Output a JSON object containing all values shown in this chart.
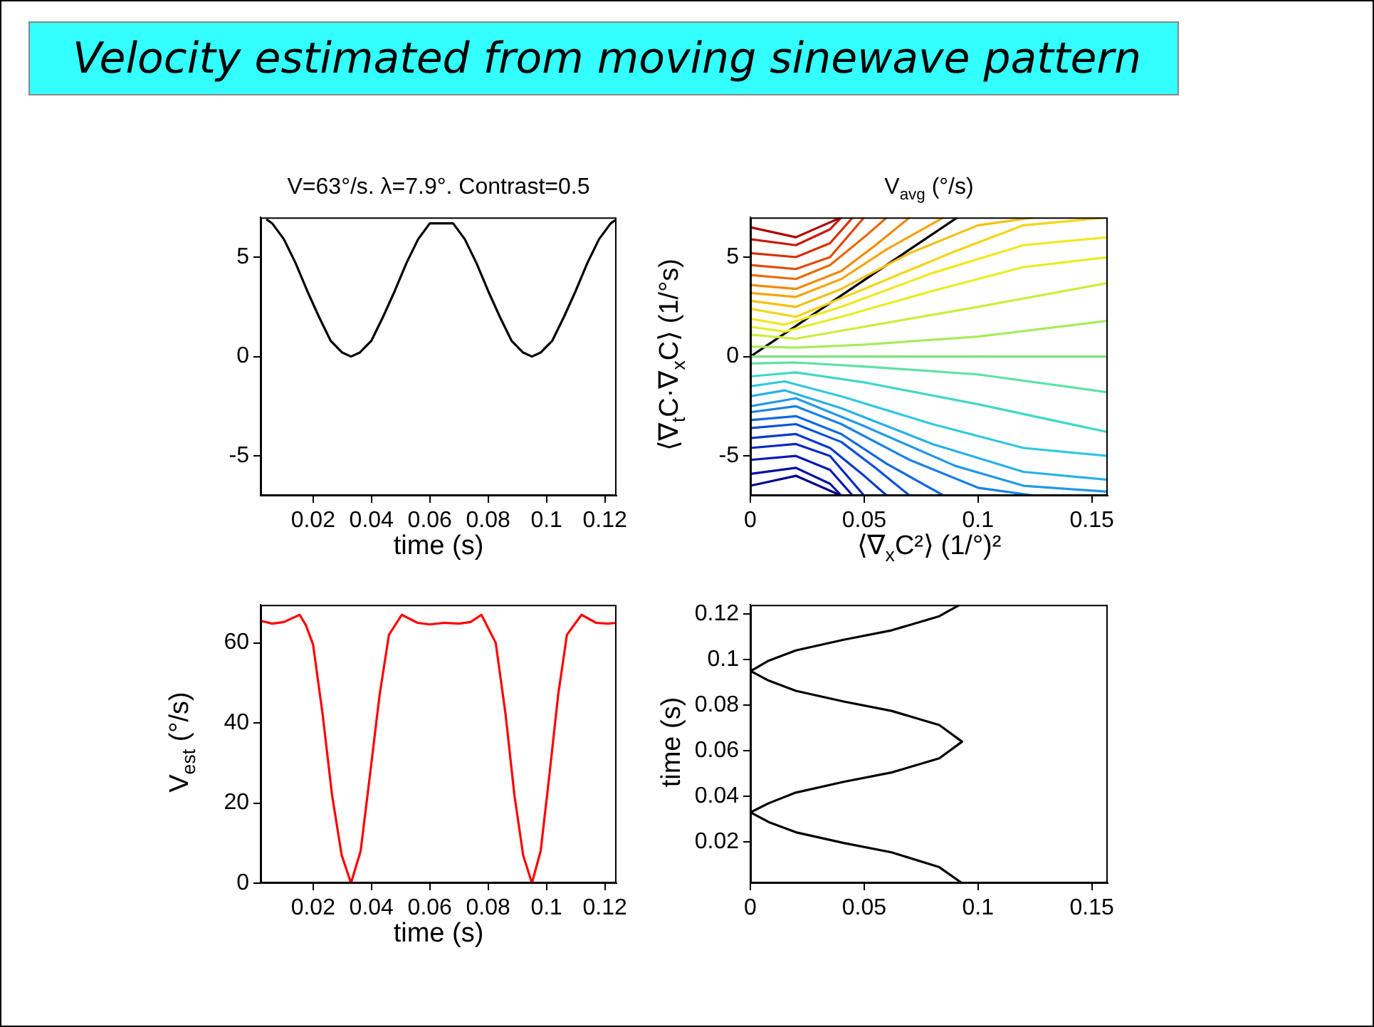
{
  "chart_data": [
    {
      "type": "other",
      "title": "Velocity estimated from moving sinewave pattern"
    },
    {
      "type": "line",
      "title": "V=63°/s. λ=7.9°. Contrast=0.5",
      "xlabel": "time (s)",
      "xlim": [
        0.002,
        0.124
      ],
      "ylim": [
        -7,
        7
      ],
      "xticks": [
        0.02,
        0.04,
        0.06,
        0.08,
        0.1,
        0.12
      ],
      "yticks": [
        -5,
        0,
        5
      ],
      "x": [
        0.004,
        0.006,
        0.01,
        0.014,
        0.018,
        0.022,
        0.026,
        0.03,
        0.033,
        0.036,
        0.04,
        0.044,
        0.048,
        0.052,
        0.056,
        0.06,
        0.068,
        0.072,
        0.076,
        0.08,
        0.084,
        0.088,
        0.092,
        0.095,
        0.098,
        0.102,
        0.106,
        0.11,
        0.114,
        0.118,
        0.122,
        0.124
      ],
      "series": [
        {
          "color": "#000000",
          "values": [
            6.9,
            6.7,
            5.9,
            4.7,
            3.3,
            2,
            0.8,
            0.2,
            0,
            0.2,
            0.8,
            2,
            3.3,
            4.7,
            5.9,
            6.7,
            6.7,
            5.9,
            4.7,
            3.3,
            2,
            0.8,
            0.2,
            0,
            0.2,
            0.8,
            2,
            3.3,
            4.7,
            5.9,
            6.7,
            6.9
          ]
        }
      ]
    },
    {
      "type": "line",
      "title": "V$_{avg}$ (°/s)",
      "xlabel": "⟨∇$_{x}$C²⟩ (1/°)²",
      "ylabel": "⟨∇$_{t}$C·∇$_{x}$C⟩ (1/°s)",
      "xlim": [
        0,
        0.157
      ],
      "ylim": [
        -7,
        7
      ],
      "xticks": [
        0,
        0.05,
        0.1,
        0.15
      ],
      "yticks": [
        -5,
        0,
        5
      ],
      "series": [
        {
          "color": "#b00000",
          "x": [
            0,
            0.02,
            0.03,
            0.04
          ],
          "values": [
            6.5,
            6.0,
            6.5,
            7
          ]
        },
        {
          "color": "#c81a04",
          "x": [
            0,
            0.02,
            0.035,
            0.04
          ],
          "values": [
            5.9,
            5.6,
            6.4,
            7
          ]
        },
        {
          "color": "#d53005",
          "x": [
            0,
            0.02,
            0.035,
            0.045
          ],
          "values": [
            5.2,
            5.0,
            5.7,
            7
          ]
        },
        {
          "color": "#e04a06",
          "x": [
            0,
            0.02,
            0.035,
            0.05
          ],
          "values": [
            4.6,
            4.4,
            5.0,
            7
          ]
        },
        {
          "color": "#ea6a08",
          "x": [
            0,
            0.02,
            0.035,
            0.05,
            0.06
          ],
          "values": [
            4.1,
            3.9,
            4.6,
            6.0,
            7
          ]
        },
        {
          "color": "#f08a0a",
          "x": [
            0,
            0.02,
            0.04,
            0.055,
            0.07
          ],
          "values": [
            3.6,
            3.4,
            4.3,
            5.6,
            7
          ]
        },
        {
          "color": "#f5a50c",
          "x": [
            0,
            0.02,
            0.04,
            0.06,
            0.085
          ],
          "values": [
            3.2,
            3.0,
            3.9,
            5.4,
            7
          ]
        },
        {
          "color": "#f5c010",
          "x": [
            0,
            0.02,
            0.04,
            0.07,
            0.1,
            0.125
          ],
          "values": [
            2.8,
            2.5,
            3.4,
            5.2,
            6.6,
            7
          ]
        },
        {
          "color": "#f5d515",
          "x": [
            0,
            0.02,
            0.05,
            0.09,
            0.12,
            0.157
          ],
          "values": [
            2.4,
            2.0,
            3.4,
            5.3,
            6.6,
            7.0
          ]
        },
        {
          "color": "#f2e81c",
          "x": [
            0,
            0.015,
            0.04,
            0.08,
            0.12,
            0.157
          ],
          "values": [
            1.9,
            1.6,
            2.5,
            4.2,
            5.6,
            6.0
          ]
        },
        {
          "color": "#e6ee20",
          "x": [
            0,
            0.015,
            0.04,
            0.08,
            0.12,
            0.157
          ],
          "values": [
            1.5,
            1.25,
            2.0,
            3.3,
            4.5,
            5.0
          ]
        },
        {
          "color": "#c8ef3c",
          "x": [
            0,
            0.02,
            0.05,
            0.1,
            0.157
          ],
          "values": [
            1.1,
            0.9,
            1.5,
            2.5,
            3.7
          ]
        },
        {
          "color": "#a8ec5a",
          "x": [
            0,
            0.02,
            0.05,
            0.1,
            0.157
          ],
          "values": [
            0.5,
            0.45,
            0.6,
            1.0,
            1.8
          ]
        },
        {
          "color": "#80e080",
          "x": [
            0,
            0.157
          ],
          "values": [
            0,
            0
          ]
        },
        {
          "color": "#5fe0a8",
          "x": [
            0,
            0.02,
            0.05,
            0.1,
            0.157
          ],
          "values": [
            -0.35,
            -0.3,
            -0.5,
            -0.9,
            -1.8
          ]
        },
        {
          "color": "#40d8c8",
          "x": [
            0,
            0.02,
            0.05,
            0.1,
            0.157
          ],
          "values": [
            -1.0,
            -0.8,
            -1.3,
            -2.4,
            -3.8
          ]
        },
        {
          "color": "#30c8e0",
          "x": [
            0,
            0.015,
            0.04,
            0.08,
            0.12,
            0.157
          ],
          "values": [
            -1.5,
            -1.25,
            -2.0,
            -3.4,
            -4.6,
            -5.0
          ]
        },
        {
          "color": "#28b0e8",
          "x": [
            0,
            0.015,
            0.04,
            0.08,
            0.12,
            0.157
          ],
          "values": [
            -2.0,
            -1.7,
            -2.6,
            -4.4,
            -5.8,
            -6.2
          ]
        },
        {
          "color": "#2098e8",
          "x": [
            0,
            0.02,
            0.05,
            0.09,
            0.12,
            0.157
          ],
          "values": [
            -2.5,
            -2.1,
            -3.5,
            -5.5,
            -6.5,
            -6.8
          ]
        },
        {
          "color": "#1880e8",
          "x": [
            0,
            0.02,
            0.04,
            0.07,
            0.1,
            0.125
          ],
          "values": [
            -2.8,
            -2.5,
            -3.4,
            -5.2,
            -6.6,
            -7
          ]
        },
        {
          "color": "#1068e0",
          "x": [
            0,
            0.02,
            0.04,
            0.06,
            0.085
          ],
          "values": [
            -3.2,
            -3.0,
            -3.9,
            -5.4,
            -7
          ]
        },
        {
          "color": "#0850d8",
          "x": [
            0,
            0.02,
            0.04,
            0.055,
            0.07
          ],
          "values": [
            -3.6,
            -3.4,
            -4.3,
            -5.6,
            -7
          ]
        },
        {
          "color": "#0838d0",
          "x": [
            0,
            0.02,
            0.035,
            0.05,
            0.06
          ],
          "values": [
            -4.1,
            -3.9,
            -4.6,
            -6.0,
            -7
          ]
        },
        {
          "color": "#0828c0",
          "x": [
            0,
            0.02,
            0.035,
            0.05
          ],
          "values": [
            -4.6,
            -4.4,
            -5.0,
            -7
          ]
        },
        {
          "color": "#0818b0",
          "x": [
            0,
            0.02,
            0.035,
            0.045
          ],
          "values": [
            -5.2,
            -5.0,
            -5.7,
            -7
          ]
        },
        {
          "color": "#0010a0",
          "x": [
            0,
            0.02,
            0.035,
            0.04
          ],
          "values": [
            -5.9,
            -5.6,
            -6.4,
            -7
          ]
        },
        {
          "color": "#000090",
          "x": [
            0,
            0.02,
            0.03,
            0.04
          ],
          "values": [
            -6.5,
            -6.0,
            -6.5,
            -7
          ]
        },
        {
          "color": "#000000",
          "x": [
            0,
            0.091
          ],
          "values": [
            0,
            7
          ]
        }
      ]
    },
    {
      "type": "line",
      "xlabel": "time (s)",
      "ylabel": "V$_{est}$ (°/s)",
      "xlim": [
        0.002,
        0.124
      ],
      "ylim": [
        0,
        69.5
      ],
      "xticks": [
        0.02,
        0.04,
        0.06,
        0.08,
        0.1,
        0.12
      ],
      "yticks": [
        0,
        20,
        40,
        60
      ],
      "x": [
        0.002,
        0.006,
        0.01,
        0.0154,
        0.0176,
        0.02,
        0.0233,
        0.0265,
        0.0298,
        0.033,
        0.0363,
        0.0395,
        0.0428,
        0.046,
        0.0504,
        0.0558,
        0.06,
        0.065,
        0.07,
        0.074,
        0.0777,
        0.0826,
        0.086,
        0.089,
        0.092,
        0.095,
        0.098,
        0.101,
        0.104,
        0.107,
        0.112,
        0.117,
        0.121,
        0.124
      ],
      "series": [
        {
          "color": "#ff0000",
          "values": [
            65.5,
            64.8,
            65.2,
            67,
            64.3,
            59.6,
            42,
            22,
            7,
            0,
            8,
            27,
            47,
            62,
            67,
            65,
            64.6,
            65,
            64.8,
            65.2,
            67,
            60,
            42,
            22,
            7,
            0,
            8,
            27,
            47,
            62,
            67,
            65,
            64.8,
            65
          ]
        }
      ]
    },
    {
      "type": "line",
      "ylabel": "time (s)",
      "xlim": [
        0,
        0.157
      ],
      "ylim": [
        0.002,
        0.124
      ],
      "xticks": [
        0,
        0.05,
        0.1,
        0.15
      ],
      "yticks": [
        0.02,
        0.04,
        0.06,
        0.08,
        0.1,
        0.12
      ],
      "series": [
        {
          "color": "#000000",
          "x": [
            0.093,
            0.083,
            0.062,
            0.041,
            0.02,
            0.008,
            0.002,
            0,
            0.002,
            0.008,
            0.02,
            0.041,
            0.062,
            0.083,
            0.093,
            0.083,
            0.062,
            0.041,
            0.02,
            0.008,
            0.002,
            0,
            0.002,
            0.008,
            0.02,
            0.041,
            0.062,
            0.083,
            0.092
          ],
          "values": [
            0.002,
            0.009,
            0.0155,
            0.0196,
            0.0243,
            0.0288,
            0.032,
            0.033,
            0.034,
            0.037,
            0.0417,
            0.0464,
            0.0505,
            0.0567,
            0.064,
            0.0713,
            0.0775,
            0.0816,
            0.0863,
            0.0908,
            0.094,
            0.095,
            0.096,
            0.0995,
            0.104,
            0.1087,
            0.1128,
            0.119,
            0.124
          ]
        }
      ]
    }
  ]
}
